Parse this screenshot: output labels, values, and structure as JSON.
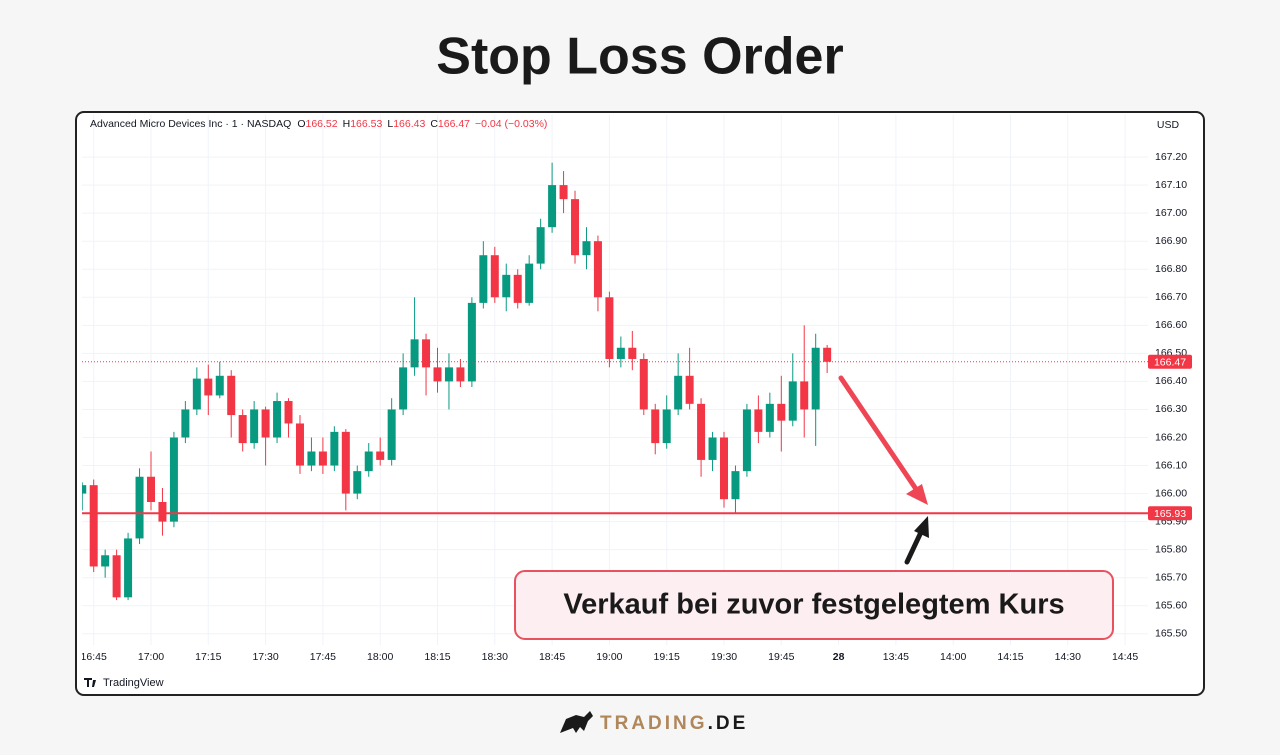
{
  "title": "Stop Loss Order",
  "chart_data": {
    "type": "candlestick",
    "instrument": "Advanced Micro Devices Inc · 1 · NASDAQ",
    "ohlc": [
      {
        "label": "O",
        "value": 166.52
      },
      {
        "label": "H",
        "value": 166.53
      },
      {
        "label": "L",
        "value": 166.43
      },
      {
        "label": "C",
        "value": 166.47
      }
    ],
    "change": "−0.04 (−0.03%)",
    "currency": "USD",
    "up_color": "#089981",
    "down_color": "#f23645",
    "candles": {
      "x": [
        "16:42",
        "16:45",
        "16:48",
        "16:51",
        "16:54",
        "16:57",
        "17:00",
        "17:03",
        "17:06",
        "17:09",
        "17:12",
        "17:15",
        "17:18",
        "17:21",
        "17:24",
        "17:27",
        "17:30",
        "17:33",
        "17:36",
        "17:39",
        "17:42",
        "17:45",
        "17:48",
        "17:51",
        "17:54",
        "17:57",
        "18:00",
        "18:03",
        "18:06",
        "18:09",
        "18:12",
        "18:15",
        "18:18",
        "18:21",
        "18:24",
        "18:27",
        "18:30",
        "18:33",
        "18:36",
        "18:39",
        "18:42",
        "18:45",
        "18:48",
        "18:51",
        "18:54",
        "18:57",
        "19:00",
        "19:03",
        "19:06",
        "19:09",
        "19:12",
        "19:15",
        "19:18",
        "19:21",
        "19:24",
        "19:27",
        "19:30",
        "19:33",
        "19:36",
        "19:39",
        "19:42",
        "19:45",
        "19:48",
        "19:51",
        "19:54",
        "19:57"
      ],
      "open": [
        166.0,
        166.03,
        165.74,
        165.78,
        165.63,
        165.84,
        166.06,
        165.97,
        165.9,
        166.2,
        166.3,
        166.41,
        166.35,
        166.42,
        166.28,
        166.18,
        166.3,
        166.2,
        166.33,
        166.25,
        166.1,
        166.15,
        166.1,
        166.22,
        166.0,
        166.08,
        166.15,
        166.12,
        166.3,
        166.45,
        166.55,
        166.45,
        166.4,
        166.45,
        166.4,
        166.68,
        166.85,
        166.7,
        166.78,
        166.68,
        166.82,
        166.95,
        167.1,
        167.05,
        166.85,
        166.9,
        166.7,
        166.48,
        166.52,
        166.48,
        166.3,
        166.18,
        166.3,
        166.42,
        166.32,
        166.12,
        166.2,
        165.98,
        166.08,
        166.3,
        166.22,
        166.32,
        166.26,
        166.4,
        166.3,
        166.52
      ],
      "high": [
        166.04,
        166.05,
        165.8,
        165.8,
        165.86,
        166.09,
        166.15,
        166.02,
        166.22,
        166.33,
        166.45,
        166.46,
        166.47,
        166.44,
        166.3,
        166.33,
        166.31,
        166.36,
        166.34,
        166.28,
        166.2,
        166.2,
        166.24,
        166.23,
        166.1,
        166.18,
        166.2,
        166.34,
        166.5,
        166.7,
        166.57,
        166.52,
        166.5,
        166.48,
        166.7,
        166.9,
        166.88,
        166.82,
        166.8,
        166.85,
        166.98,
        167.18,
        167.15,
        167.08,
        166.95,
        166.92,
        166.72,
        166.56,
        166.58,
        166.5,
        166.32,
        166.35,
        166.5,
        166.52,
        166.34,
        166.22,
        166.22,
        166.1,
        166.32,
        166.35,
        166.36,
        166.42,
        166.5,
        166.6,
        166.57,
        166.53
      ],
      "low": [
        165.94,
        165.72,
        165.7,
        165.62,
        165.62,
        165.82,
        165.94,
        165.85,
        165.88,
        166.18,
        166.28,
        166.28,
        166.34,
        166.2,
        166.15,
        166.16,
        166.1,
        166.18,
        166.2,
        166.07,
        166.08,
        166.07,
        166.08,
        165.94,
        165.98,
        166.06,
        166.1,
        166.1,
        166.28,
        166.42,
        166.35,
        166.36,
        166.3,
        166.38,
        166.38,
        166.66,
        166.68,
        166.65,
        166.66,
        166.67,
        166.8,
        166.93,
        167.0,
        166.82,
        166.8,
        166.65,
        166.45,
        166.45,
        166.44,
        166.28,
        166.14,
        166.16,
        166.28,
        166.3,
        166.06,
        166.08,
        165.95,
        165.93,
        166.06,
        166.18,
        166.2,
        166.15,
        166.24,
        166.2,
        166.17,
        166.43
      ],
      "close": [
        166.03,
        165.74,
        165.78,
        165.63,
        165.84,
        166.06,
        165.97,
        165.9,
        166.2,
        166.3,
        166.41,
        166.35,
        166.42,
        166.28,
        166.18,
        166.3,
        166.2,
        166.33,
        166.25,
        166.1,
        166.15,
        166.1,
        166.22,
        166.0,
        166.08,
        166.15,
        166.12,
        166.3,
        166.45,
        166.55,
        166.45,
        166.4,
        166.45,
        166.4,
        166.68,
        166.85,
        166.7,
        166.78,
        166.68,
        166.82,
        166.95,
        167.1,
        167.05,
        166.85,
        166.9,
        166.7,
        166.48,
        166.52,
        166.48,
        166.3,
        166.18,
        166.3,
        166.42,
        166.32,
        166.12,
        166.2,
        165.98,
        166.08,
        166.3,
        166.22,
        166.32,
        166.26,
        166.4,
        166.3,
        166.52,
        166.47
      ]
    },
    "xticks": [
      "16:45",
      "17:00",
      "17:15",
      "17:30",
      "17:45",
      "18:00",
      "18:15",
      "18:30",
      "18:45",
      "19:00",
      "19:15",
      "19:30",
      "19:45",
      "28",
      "13:45",
      "14:00",
      "14:15",
      "14:30",
      "14:45"
    ],
    "ylim": [
      165.46,
      167.35
    ],
    "yticks": [
      {
        "value": 165.5,
        "label": "165.50"
      },
      {
        "value": 165.6,
        "label": "165.60"
      },
      {
        "value": 165.7,
        "label": "165.70"
      },
      {
        "value": 165.8,
        "label": "165.80"
      },
      {
        "value": 165.9,
        "label": "165.90"
      },
      {
        "value": 166.0,
        "label": "166.00"
      },
      {
        "value": 166.1,
        "label": "166.10"
      },
      {
        "value": 166.2,
        "label": "166.20"
      },
      {
        "value": 166.3,
        "label": "166.30"
      },
      {
        "value": 166.4,
        "label": "166.40"
      },
      {
        "value": 166.5,
        "label": "166.50"
      },
      {
        "value": 166.6,
        "label": "166.60"
      },
      {
        "value": 166.7,
        "label": "166.70"
      },
      {
        "value": 166.8,
        "label": "166.80"
      },
      {
        "value": 166.9,
        "label": "166.90"
      },
      {
        "value": 167.0,
        "label": "167.00"
      },
      {
        "value": 167.1,
        "label": "167.10"
      },
      {
        "value": 167.2,
        "label": "167.20"
      }
    ],
    "grid": true,
    "price_lines": [
      {
        "value": 166.47,
        "style": "dotted",
        "color": "#f23645"
      },
      {
        "value": 165.93,
        "style": "solid",
        "color": "#f23645"
      }
    ],
    "annotation": "Verkauf bei zuvor festgelegtem Kurs",
    "source": "TradingView"
  },
  "logo": {
    "brand": "TRADING",
    "suffix": ".DE"
  }
}
